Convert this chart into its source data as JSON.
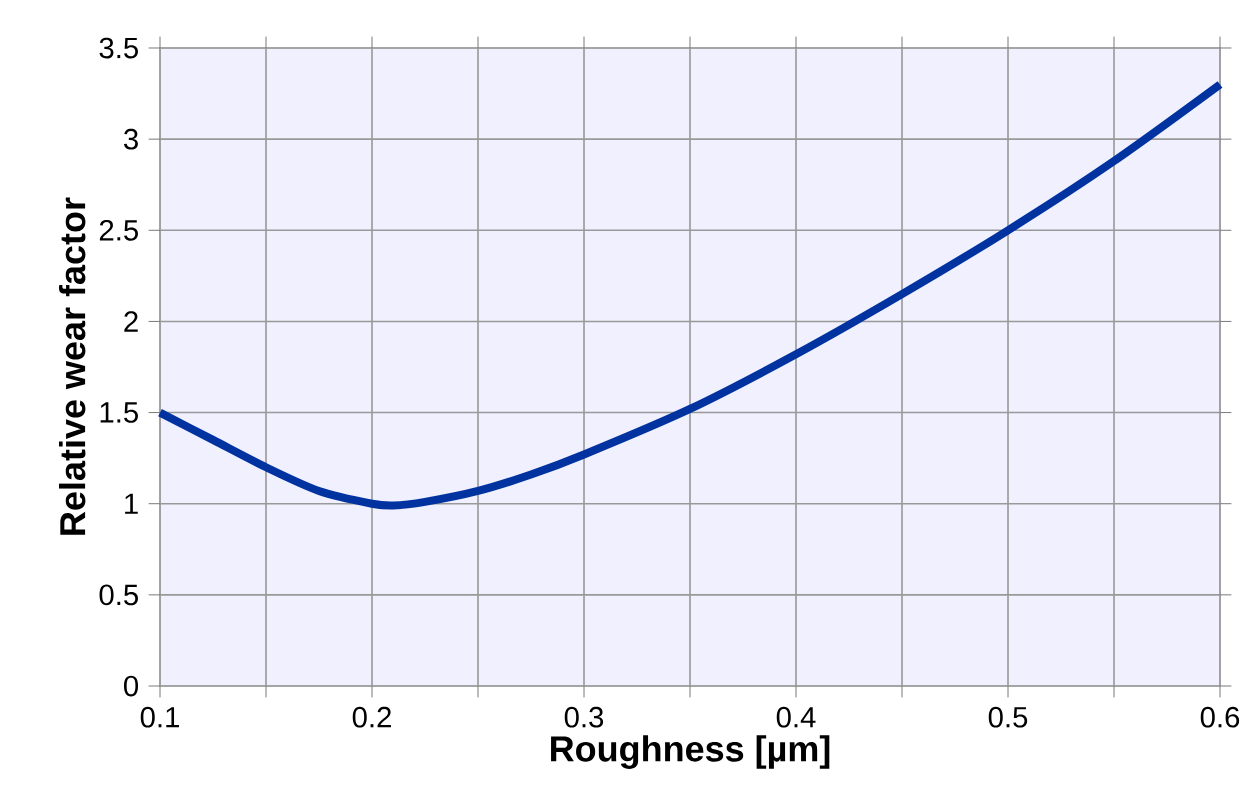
{
  "chart_data": {
    "type": "line",
    "xlabel": "Roughness [µm]",
    "ylabel": "Relative wear factor",
    "x": [
      0.1,
      0.125,
      0.15,
      0.175,
      0.2,
      0.21,
      0.225,
      0.25,
      0.275,
      0.3,
      0.35,
      0.4,
      0.45,
      0.5,
      0.55,
      0.6
    ],
    "series": [
      {
        "color": "#0033a0",
        "values": [
          1.5,
          1.35,
          1.2,
          1.07,
          1.0,
          0.99,
          1.01,
          1.07,
          1.16,
          1.27,
          1.52,
          1.82,
          2.15,
          2.5,
          2.88,
          3.3
        ]
      }
    ],
    "xlim": [
      0.1,
      0.6
    ],
    "ylim": [
      0,
      3.5
    ],
    "xticks": [
      0.1,
      {
        "value": 0.15,
        "label": null
      },
      0.2,
      {
        "value": 0.25,
        "label": null
      },
      0.3,
      {
        "value": 0.35,
        "label": null
      },
      0.4,
      {
        "value": 0.45,
        "label": null
      },
      0.5,
      {
        "value": 0.55,
        "label": null
      },
      0.6
    ],
    "yticks": [
      0,
      0.5,
      1,
      1.5,
      2,
      2.5,
      3,
      3.5
    ],
    "grid": true,
    "marker": "none",
    "line_style": "solid"
  }
}
